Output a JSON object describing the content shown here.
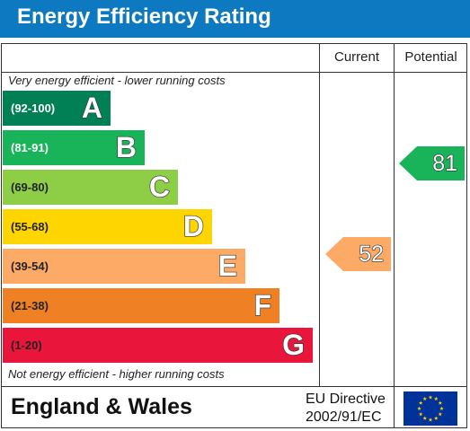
{
  "header": {
    "title": "Energy Efficiency Rating"
  },
  "columns": {
    "current_label": "Current",
    "potential_label": "Potential"
  },
  "captions": {
    "top": "Very energy efficient - lower running costs",
    "bottom": "Not energy efficient - higher running costs"
  },
  "chart_data": {
    "type": "bar",
    "title": "Energy Efficiency Rating",
    "bands": [
      {
        "letter": "A",
        "range": "(92-100)",
        "min": 92,
        "max": 100,
        "color": "#008054",
        "range_color": "#ffffff"
      },
      {
        "letter": "B",
        "range": "(81-91)",
        "min": 81,
        "max": 91,
        "color": "#19b459",
        "range_color": "#ffffff"
      },
      {
        "letter": "C",
        "range": "(69-80)",
        "min": 69,
        "max": 80,
        "color": "#8dce46",
        "range_color": "#222222"
      },
      {
        "letter": "D",
        "range": "(55-68)",
        "min": 55,
        "max": 68,
        "color": "#ffd500",
        "range_color": "#222222"
      },
      {
        "letter": "E",
        "range": "(39-54)",
        "min": 39,
        "max": 54,
        "color": "#fcaa65",
        "range_color": "#222222"
      },
      {
        "letter": "F",
        "range": "(21-38)",
        "min": 21,
        "max": 38,
        "color": "#ef8023",
        "range_color": "#222222"
      },
      {
        "letter": "G",
        "range": "(1-20)",
        "min": 1,
        "max": 20,
        "color": "#e9153b",
        "range_color": "#222222"
      }
    ],
    "current": {
      "value": 52,
      "band": "E",
      "color": "#fcaa65"
    },
    "potential": {
      "value": 81,
      "band": "B",
      "color": "#19b459"
    }
  },
  "footer": {
    "region": "England & Wales",
    "directive_line1": "EU Directive",
    "directive_line2": "2002/91/EC",
    "flag_icon": "eu-flag-icon",
    "flag_color": "#003399",
    "star_color": "#ffcc00"
  }
}
